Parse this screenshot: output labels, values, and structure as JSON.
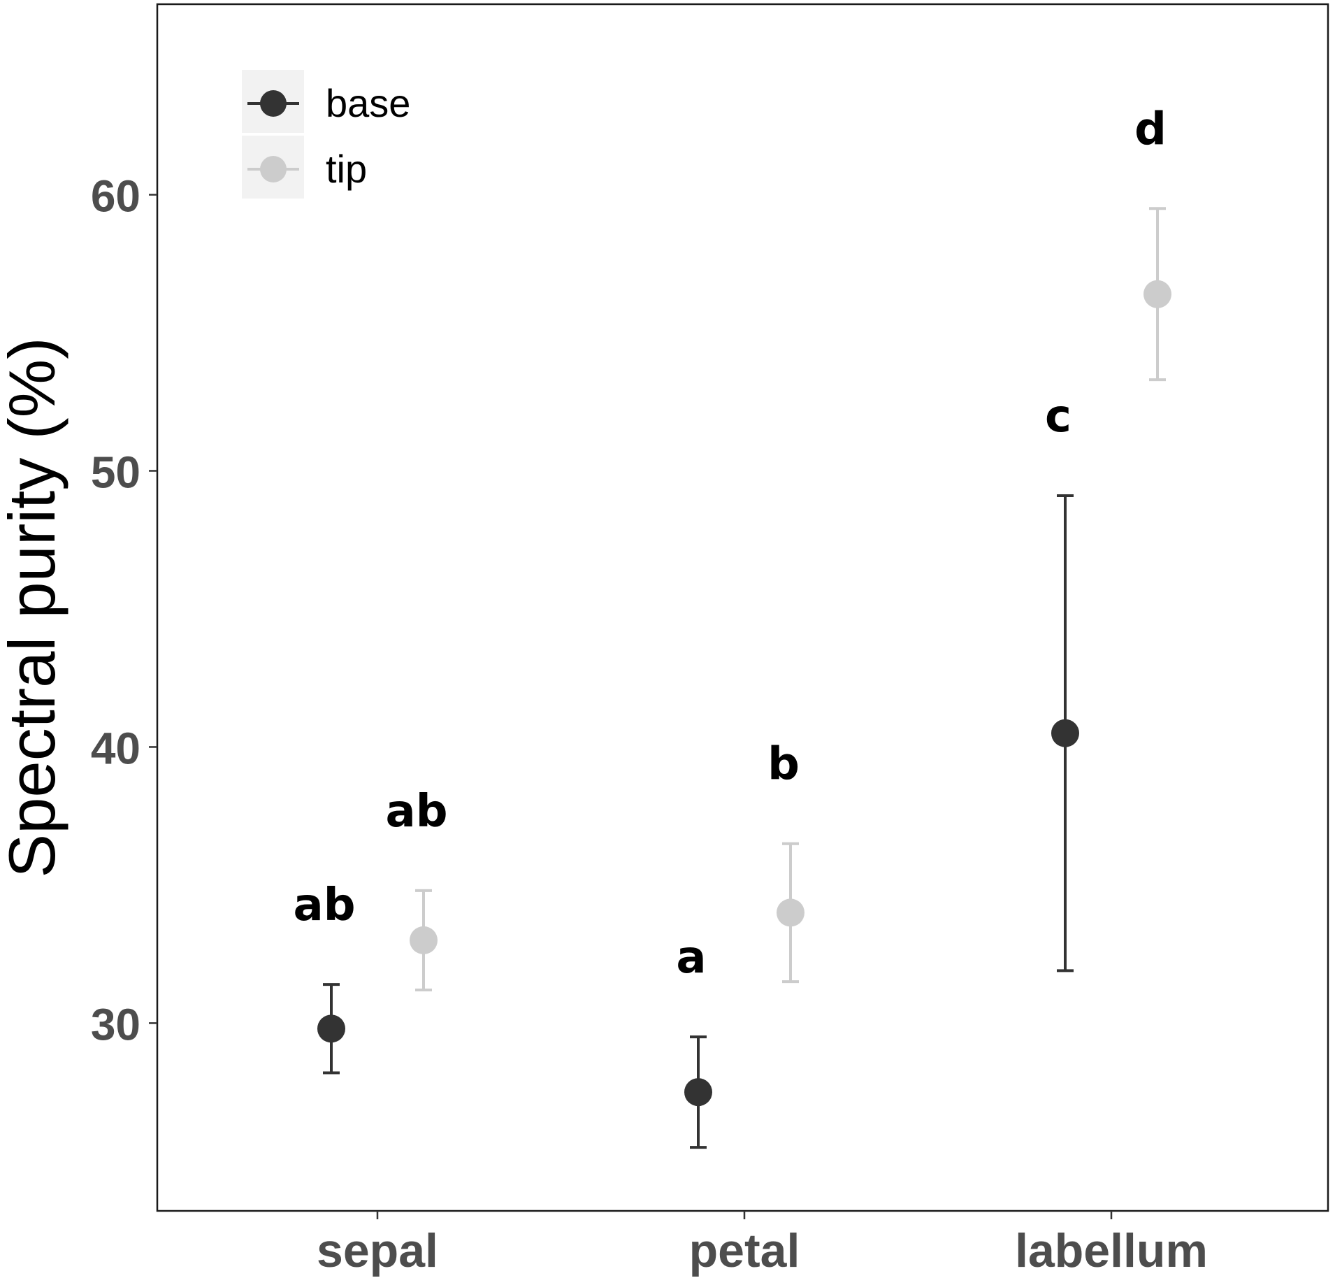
{
  "chart_data": {
    "type": "scatter",
    "title": "",
    "xlabel": "",
    "ylabel": "Spectral purity (%)",
    "categories": [
      "sepal",
      "petal",
      "labellum"
    ],
    "yticks": [
      30,
      40,
      50,
      60
    ],
    "ylim": [
      23.2,
      66.9
    ],
    "grid": false,
    "legend_position": "top-left",
    "series": [
      {
        "name": "base",
        "color": "#333333",
        "points": [
          {
            "category": "sepal",
            "mean": 29.8,
            "lower": 28.2,
            "upper": 31.4,
            "letter": "ab"
          },
          {
            "category": "petal",
            "mean": 27.5,
            "lower": 25.5,
            "upper": 29.5,
            "letter": "a"
          },
          {
            "category": "labellum",
            "mean": 40.5,
            "lower": 31.9,
            "upper": 49.1,
            "letter": "c"
          }
        ]
      },
      {
        "name": "tip",
        "color": "#cccccc",
        "points": [
          {
            "category": "sepal",
            "mean": 33.0,
            "lower": 31.2,
            "upper": 34.8,
            "letter": "ab"
          },
          {
            "category": "petal",
            "mean": 34.0,
            "lower": 31.5,
            "upper": 36.5,
            "letter": "b"
          },
          {
            "category": "labellum",
            "mean": 56.4,
            "lower": 53.3,
            "upper": 59.5,
            "letter": "d"
          }
        ]
      }
    ]
  }
}
